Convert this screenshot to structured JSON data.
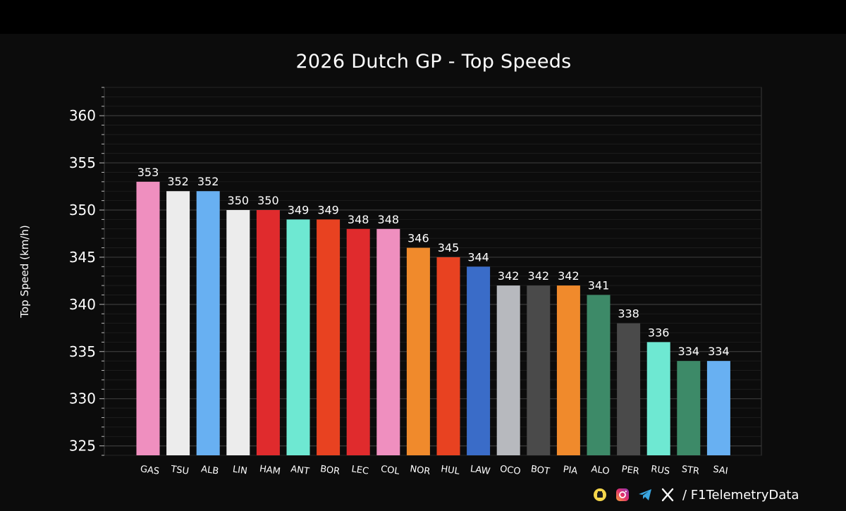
{
  "chart_data": {
    "type": "bar",
    "title": "2026 Dutch GP - Top Speeds",
    "xlabel": "",
    "ylabel": "Top Speed (km/h)",
    "ylim": [
      324,
      363
    ],
    "yticks": [
      325,
      330,
      335,
      340,
      345,
      350,
      355,
      360
    ],
    "grid": "horizontal",
    "categories": [
      "GAS",
      "TSU",
      "ALB",
      "LIN",
      "HAM",
      "ANT",
      "BOR",
      "LEC",
      "COL",
      "NOR",
      "HUL",
      "LAW",
      "OCO",
      "BOT",
      "PIA",
      "ALO",
      "PER",
      "RUS",
      "STR",
      "SAI"
    ],
    "values": [
      353,
      352,
      352,
      350,
      350,
      349,
      349,
      348,
      348,
      346,
      345,
      344,
      342,
      342,
      342,
      341,
      338,
      336,
      334,
      334
    ],
    "colors": [
      "#ef8fbf",
      "#ececec",
      "#68b0f2",
      "#ececec",
      "#e02b2d",
      "#6ee8d2",
      "#e84221",
      "#e02b2d",
      "#ef8fbf",
      "#f08a2c",
      "#e84221",
      "#3a6cc8",
      "#b7b9be",
      "#4a4a4a",
      "#f08a2c",
      "#3d8a68",
      "#4a4a4a",
      "#6ee8d2",
      "#3d8a68",
      "#68b0f2"
    ]
  },
  "footer": {
    "handle": "/ F1TelemetryData",
    "icons": [
      "buymeacoffee-icon",
      "instagram-icon",
      "telegram-icon",
      "x-icon"
    ]
  }
}
